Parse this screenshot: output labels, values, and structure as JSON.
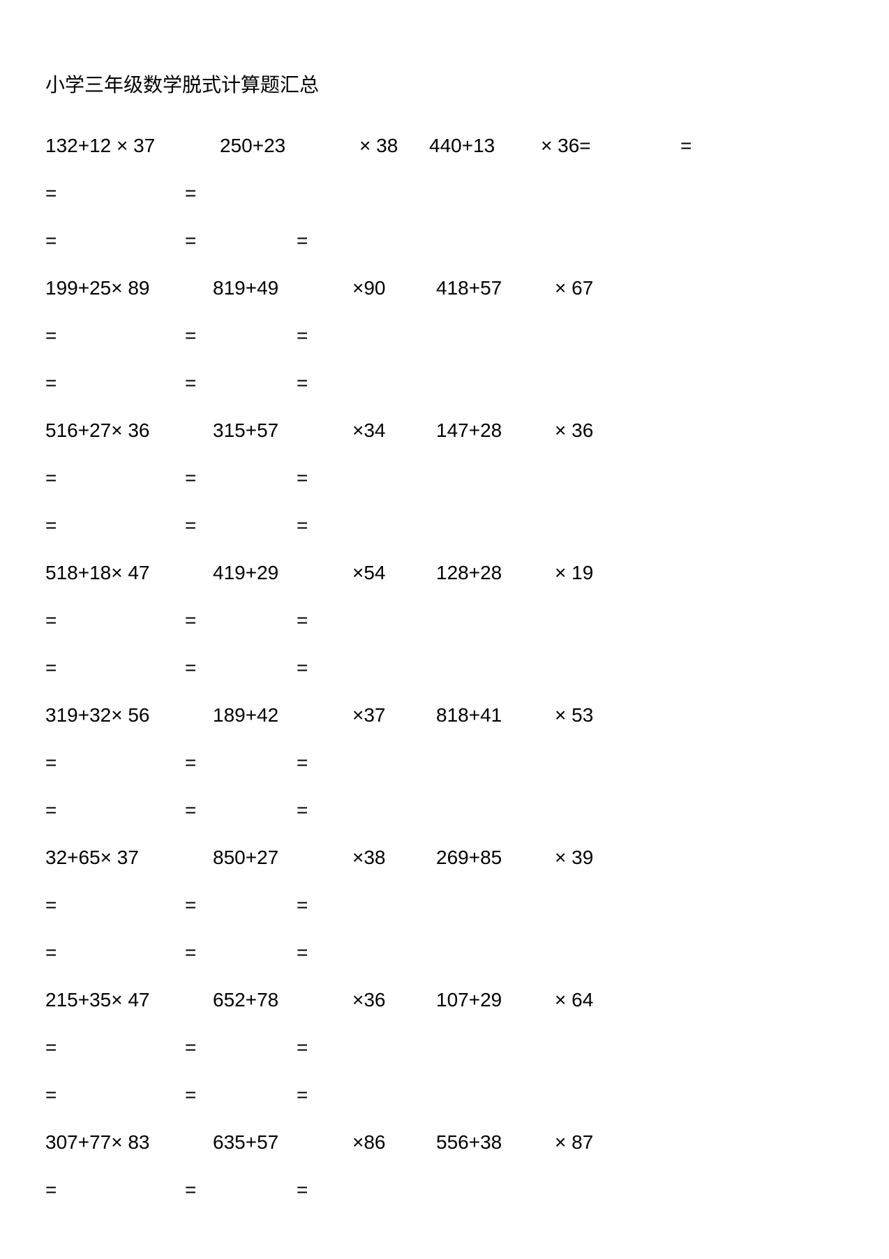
{
  "title": "小学三年级数学脱式计算题汇总",
  "eq": "=",
  "groups": [
    {
      "type": "first",
      "row": [
        "132+12 × 37",
        "250+23",
        "× 38",
        "440+13",
        "× 36=",
        "="
      ],
      "eq1": [
        "=",
        "="
      ],
      "eq2": [
        "=",
        "=",
        "="
      ]
    },
    {
      "type": "normal",
      "row": [
        "199+25× 89",
        "819+49",
        "×90",
        "418+57",
        "× 67"
      ],
      "eq1": [
        "=",
        "=",
        "="
      ],
      "eq2": [
        "=",
        "=",
        "="
      ]
    },
    {
      "type": "normal",
      "row": [
        "516+27× 36",
        "315+57",
        "×34",
        "147+28",
        "× 36"
      ],
      "eq1": [
        "=",
        "=",
        "="
      ],
      "eq2": [
        "=",
        "=",
        "="
      ]
    },
    {
      "type": "normal",
      "row": [
        "518+18× 47",
        "419+29",
        "×54",
        "128+28",
        "× 19"
      ],
      "eq1": [
        "=",
        "=",
        "="
      ],
      "eq2": [
        "=",
        "=",
        "="
      ]
    },
    {
      "type": "normal",
      "row": [
        "319+32× 56",
        "189+42",
        "×37",
        "818+41",
        "× 53"
      ],
      "eq1": [
        "=",
        "=",
        "="
      ],
      "eq2": [
        "=",
        "=",
        "="
      ]
    },
    {
      "type": "normal",
      "row": [
        "32+65× 37",
        "850+27",
        "×38",
        "269+85",
        "× 39"
      ],
      "eq1": [
        "=",
        "=",
        "="
      ],
      "eq2": [
        "=",
        "=",
        "="
      ]
    },
    {
      "type": "normal",
      "row": [
        "215+35× 47",
        "652+78",
        "×36",
        "107+29",
        "× 64"
      ],
      "eq1": [
        "=",
        "=",
        "="
      ],
      "eq2": [
        "=",
        "=",
        "="
      ]
    },
    {
      "type": "last",
      "row": [
        "307+77× 83",
        "635+57",
        "×86",
        "556+38",
        "× 87"
      ],
      "eq1": [
        "=",
        "=",
        "="
      ]
    }
  ]
}
